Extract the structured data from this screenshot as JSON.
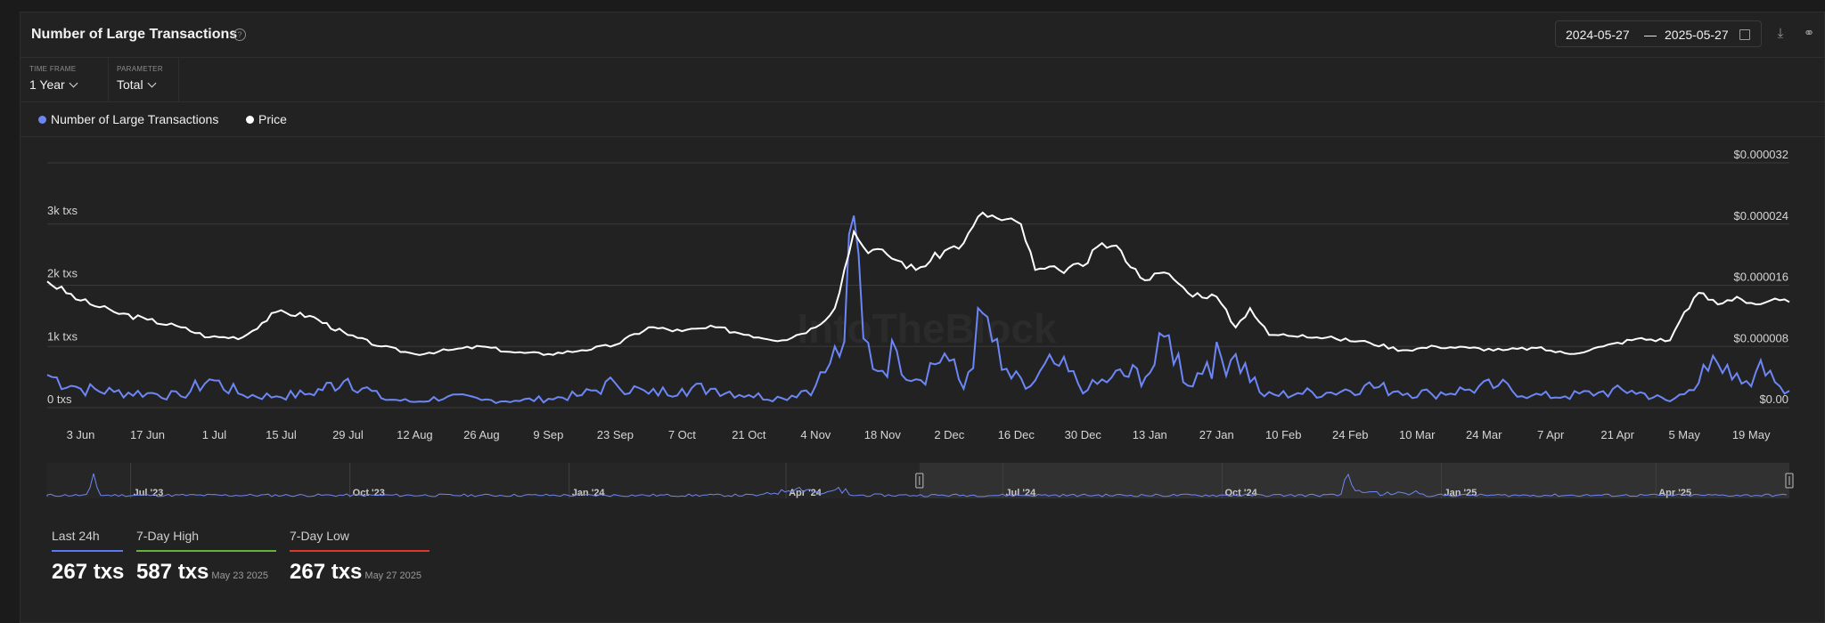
{
  "header": {
    "title": "Number of Large Transactions",
    "date_from": "2024-05-27",
    "date_sep": "—",
    "date_to": "2025-05-27"
  },
  "controls": {
    "timeframe_label": "TIME FRAME",
    "timeframe_value": "1 Year",
    "parameter_label": "PARAMETER",
    "parameter_value": "Total"
  },
  "legend": {
    "series1": "Number of Large Transactions",
    "series2": "Price"
  },
  "icons": {
    "help": "help-icon",
    "calendar": "calendar-icon",
    "download": "download-icon",
    "link": "link-icon"
  },
  "colors": {
    "transactions": "#6d86f5",
    "price": "#ffffff",
    "last24h": "#5b78f0",
    "high": "#63b33a",
    "low": "#e0372c"
  },
  "watermark": "IntoTheBlock",
  "stats": [
    {
      "label": "Last 24h",
      "value": "267 txs",
      "date": ""
    },
    {
      "label": "7-Day High",
      "value": "587 txs",
      "date": "May 23 2025"
    },
    {
      "label": "7-Day Low",
      "value": "267 txs",
      "date": "May 27 2025"
    }
  ],
  "chart_data": {
    "type": "line",
    "title": "Number of Large Transactions",
    "x_range": [
      "2024-05-27",
      "2025-05-27"
    ],
    "x_tick_labels": [
      "3 Jun",
      "17 Jun",
      "1 Jul",
      "15 Jul",
      "29 Jul",
      "12 Aug",
      "26 Aug",
      "9 Sep",
      "23 Sep",
      "7 Oct",
      "21 Oct",
      "4 Nov",
      "18 Nov",
      "2 Dec",
      "16 Dec",
      "30 Dec",
      "13 Jan",
      "27 Jan",
      "10 Feb",
      "24 Feb",
      "10 Mar",
      "24 Mar",
      "7 Apr",
      "21 Apr",
      "5 May",
      "19 May"
    ],
    "y_left": {
      "ticks": [
        "0 txs",
        "1k txs",
        "2k txs",
        "3k txs"
      ],
      "range": [
        0,
        3000
      ]
    },
    "y_right": {
      "ticks": [
        "$0.00",
        "$0.000008",
        "$0.000016",
        "$0.000024",
        "$0.000032"
      ],
      "range": [
        0,
        3.2e-05
      ]
    },
    "grid": true,
    "legend_position": "top-left",
    "series": [
      {
        "name": "Number of Large Transactions",
        "axis": "left",
        "points": [
          [
            "2024-05-27",
            520
          ],
          [
            "2024-06-03",
            300
          ],
          [
            "2024-06-10",
            250
          ],
          [
            "2024-06-17",
            230
          ],
          [
            "2024-06-24",
            180
          ],
          [
            "2024-06-30",
            450
          ],
          [
            "2024-07-07",
            200
          ],
          [
            "2024-07-14",
            180
          ],
          [
            "2024-07-21",
            220
          ],
          [
            "2024-07-29",
            460
          ],
          [
            "2024-08-05",
            150
          ],
          [
            "2024-08-12",
            90
          ],
          [
            "2024-08-19",
            180
          ],
          [
            "2024-08-26",
            120
          ],
          [
            "2024-09-02",
            110
          ],
          [
            "2024-09-09",
            140
          ],
          [
            "2024-09-16",
            200
          ],
          [
            "2024-09-23",
            390
          ],
          [
            "2024-09-30",
            220
          ],
          [
            "2024-10-07",
            300
          ],
          [
            "2024-10-14",
            300
          ],
          [
            "2024-10-21",
            200
          ],
          [
            "2024-10-28",
            150
          ],
          [
            "2024-11-04",
            350
          ],
          [
            "2024-11-07",
            700
          ],
          [
            "2024-11-10",
            1050
          ],
          [
            "2024-11-12",
            3050
          ],
          [
            "2024-11-14",
            1100
          ],
          [
            "2024-11-17",
            580
          ],
          [
            "2024-11-21",
            900
          ],
          [
            "2024-11-25",
            450
          ],
          [
            "2024-12-01",
            860
          ],
          [
            "2024-12-05",
            300
          ],
          [
            "2024-12-09",
            1500
          ],
          [
            "2024-12-13",
            600
          ],
          [
            "2024-12-18",
            300
          ],
          [
            "2024-12-24",
            700
          ],
          [
            "2024-12-31",
            280
          ],
          [
            "2025-01-05",
            480
          ],
          [
            "2025-01-13",
            550
          ],
          [
            "2025-01-17",
            1150
          ],
          [
            "2025-01-21",
            350
          ],
          [
            "2025-01-25",
            720
          ],
          [
            "2025-01-31",
            850
          ],
          [
            "2025-02-06",
            180
          ],
          [
            "2025-02-13",
            230
          ],
          [
            "2025-02-20",
            240
          ],
          [
            "2025-02-27",
            350
          ],
          [
            "2025-03-06",
            260
          ],
          [
            "2025-03-13",
            220
          ],
          [
            "2025-03-20",
            280
          ],
          [
            "2025-03-27",
            350
          ],
          [
            "2025-04-03",
            190
          ],
          [
            "2025-04-10",
            180
          ],
          [
            "2025-04-17",
            240
          ],
          [
            "2025-04-24",
            270
          ],
          [
            "2025-05-02",
            100
          ],
          [
            "2025-05-06",
            280
          ],
          [
            "2025-05-09",
            680
          ],
          [
            "2025-05-13",
            550
          ],
          [
            "2025-05-17",
            380
          ],
          [
            "2025-05-20",
            570
          ],
          [
            "2025-05-23",
            587
          ],
          [
            "2025-05-27",
            267
          ]
        ]
      },
      {
        "name": "Price",
        "axis": "right",
        "points": [
          [
            "2024-05-27",
            1.65e-05
          ],
          [
            "2024-06-03",
            1.4e-05
          ],
          [
            "2024-06-10",
            1.25e-05
          ],
          [
            "2024-06-17",
            1.15e-05
          ],
          [
            "2024-06-24",
            1.05e-05
          ],
          [
            "2024-06-30",
            9.2e-06
          ],
          [
            "2024-07-07",
            9.2e-06
          ],
          [
            "2024-07-14",
            1.25e-05
          ],
          [
            "2024-07-21",
            1.2e-05
          ],
          [
            "2024-07-29",
            9.5e-06
          ],
          [
            "2024-08-05",
            8e-06
          ],
          [
            "2024-08-12",
            7e-06
          ],
          [
            "2024-08-19",
            7.5e-06
          ],
          [
            "2024-08-26",
            8e-06
          ],
          [
            "2024-09-02",
            7.2e-06
          ],
          [
            "2024-09-09",
            7e-06
          ],
          [
            "2024-09-16",
            7.5e-06
          ],
          [
            "2024-09-23",
            8.2e-06
          ],
          [
            "2024-09-30",
            1.05e-05
          ],
          [
            "2024-10-07",
            1e-05
          ],
          [
            "2024-10-14",
            1.05e-05
          ],
          [
            "2024-10-21",
            9.5e-06
          ],
          [
            "2024-10-28",
            8.8e-06
          ],
          [
            "2024-11-04",
            1.05e-05
          ],
          [
            "2024-11-08",
            1.3e-05
          ],
          [
            "2024-11-12",
            2.3e-05
          ],
          [
            "2024-11-14",
            2.1e-05
          ],
          [
            "2024-11-19",
            2e-05
          ],
          [
            "2024-11-25",
            1.8e-05
          ],
          [
            "2024-12-01",
            2.05e-05
          ],
          [
            "2024-12-05",
            2.15e-05
          ],
          [
            "2024-12-09",
            2.55e-05
          ],
          [
            "2024-12-13",
            2.45e-05
          ],
          [
            "2024-12-17",
            2.4e-05
          ],
          [
            "2024-12-20",
            1.8e-05
          ],
          [
            "2024-12-25",
            1.8e-05
          ],
          [
            "2024-12-30",
            1.85e-05
          ],
          [
            "2025-01-03",
            2.15e-05
          ],
          [
            "2025-01-07",
            2.05e-05
          ],
          [
            "2025-01-11",
            1.7e-05
          ],
          [
            "2025-01-17",
            1.75e-05
          ],
          [
            "2025-01-21",
            1.5e-05
          ],
          [
            "2025-01-27",
            1.45e-05
          ],
          [
            "2025-01-31",
            1.05e-05
          ],
          [
            "2025-02-03",
            1.3e-05
          ],
          [
            "2025-02-07",
            9.5e-06
          ],
          [
            "2025-02-14",
            9.5e-06
          ],
          [
            "2025-02-21",
            9e-06
          ],
          [
            "2025-02-28",
            8.5e-06
          ],
          [
            "2025-03-07",
            7.5e-06
          ],
          [
            "2025-03-14",
            8e-06
          ],
          [
            "2025-03-21",
            7.8e-06
          ],
          [
            "2025-03-28",
            7.5e-06
          ],
          [
            "2025-04-04",
            7.8e-06
          ],
          [
            "2025-04-11",
            7e-06
          ],
          [
            "2025-04-18",
            8e-06
          ],
          [
            "2025-04-25",
            9e-06
          ],
          [
            "2025-05-02",
            8.8e-06
          ],
          [
            "2025-05-05",
            1.25e-05
          ],
          [
            "2025-05-08",
            1.5e-05
          ],
          [
            "2025-05-12",
            1.35e-05
          ],
          [
            "2025-05-16",
            1.45e-05
          ],
          [
            "2025-05-20",
            1.35e-05
          ],
          [
            "2025-05-23",
            1.4e-05
          ],
          [
            "2025-05-27",
            1.38e-05
          ]
        ]
      }
    ],
    "navigator": {
      "tick_labels": [
        "Jul '23",
        "Oct '23",
        "Jan '24",
        "Apr '24",
        "Jul '24",
        "Oct '24",
        "Jan '25",
        "Apr '25"
      ],
      "range": [
        "2023-05-27",
        "2025-05-27"
      ],
      "selected_range": [
        "2024-05-27",
        "2025-05-27"
      ]
    }
  }
}
